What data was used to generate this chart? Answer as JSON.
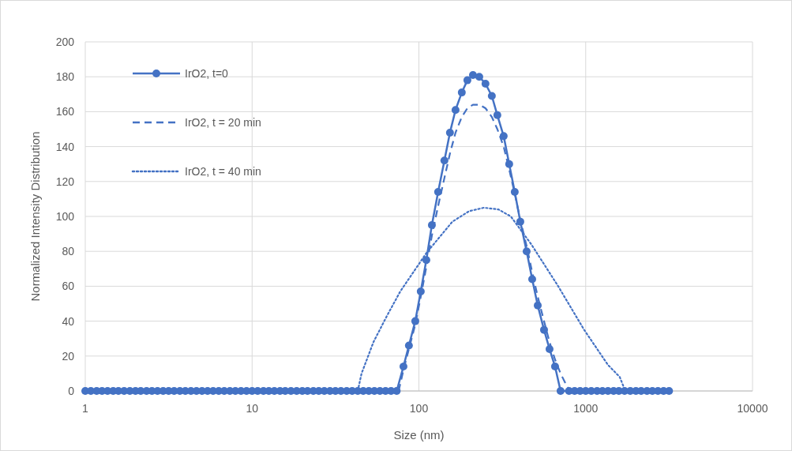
{
  "chart_data": {
    "type": "line",
    "xlabel": "Size (nm)",
    "ylabel": "Normalized Intensity Distribution",
    "log": "x",
    "grid": true,
    "legend": "top left",
    "xlim": [
      1,
      10000
    ],
    "xticks": [
      1,
      10,
      100,
      1000,
      10000
    ],
    "ylim": [
      0,
      200
    ],
    "yticks": [
      0,
      20,
      40,
      60,
      80,
      100,
      120,
      140,
      160,
      180,
      200
    ],
    "series": [
      {
        "name": "IrO2, t=0",
        "color": "#4472c4",
        "marker": "circle",
        "line_style": "solid",
        "x": [
          1,
          1.08,
          1.17,
          1.26,
          1.36,
          1.47,
          1.58,
          1.71,
          1.85,
          2,
          2.15,
          2.33,
          2.51,
          2.71,
          2.93,
          3.16,
          3.41,
          3.69,
          3.98,
          4.3,
          4.64,
          5.01,
          5.41,
          5.84,
          6.31,
          6.81,
          7.36,
          7.94,
          8.58,
          9.26,
          10,
          10.8,
          11.7,
          12.6,
          13.6,
          14.7,
          15.8,
          17.1,
          18.5,
          20,
          21.5,
          23.3,
          25.1,
          27.1,
          29.3,
          31.6,
          34.1,
          36.9,
          39.8,
          43,
          46.4,
          50.1,
          54.1,
          58.4,
          63.1,
          68.1,
          73.6,
          80.8,
          87.1,
          95.1,
          102.6,
          110.8,
          119.6,
          130.4,
          142.2,
          153.5,
          165.8,
          180.8,
          195.3,
          210.9,
          230.1,
          250.7,
          273.7,
          295.3,
          322.2,
          347.8,
          375.5,
          405.4,
          442.5,
          477.8,
          515.7,
          562.6,
          606.9,
          654.9,
          706.8,
          794,
          858,
          926,
          1000,
          1080,
          1170,
          1260,
          1360,
          1470,
          1580,
          1710,
          1850,
          2000,
          2150,
          2330,
          2510,
          2710,
          2930,
          3160
        ],
        "values": [
          0,
          0,
          0,
          0,
          0,
          0,
          0,
          0,
          0,
          0,
          0,
          0,
          0,
          0,
          0,
          0,
          0,
          0,
          0,
          0,
          0,
          0,
          0,
          0,
          0,
          0,
          0,
          0,
          0,
          0,
          0,
          0,
          0,
          0,
          0,
          0,
          0,
          0,
          0,
          0,
          0,
          0,
          0,
          0,
          0,
          0,
          0,
          0,
          0,
          0,
          0,
          0,
          0,
          0,
          0,
          0,
          0,
          14,
          26,
          40,
          57,
          75,
          95,
          114,
          132,
          148,
          161,
          171,
          178,
          181,
          180,
          176,
          169,
          158,
          146,
          130,
          114,
          97,
          80,
          64,
          49,
          35,
          24,
          14,
          0,
          0,
          0,
          0,
          0,
          0,
          0,
          0,
          0,
          0,
          0,
          0,
          0,
          0,
          0,
          0,
          0,
          0,
          0,
          0
        ]
      },
      {
        "name": "IrO2, t = 20 min",
        "color": "#4472c4",
        "marker": "none",
        "line_style": "dashed",
        "x": [
          75.6,
          80.8,
          87.1,
          95.1,
          102.6,
          110.8,
          119.6,
          130.4,
          142.2,
          153.5,
          165.8,
          180.8,
          195.3,
          210.9,
          230.1,
          250.7,
          273.7,
          295.3,
          322.2,
          347.8,
          375.5,
          405.4,
          442.5,
          477.8,
          515.7,
          562.6,
          606.9,
          654.9,
          706.8,
          760,
          805
        ],
        "values": [
          0,
          12,
          24,
          38,
          54,
          71,
          89,
          106,
          122,
          136,
          148,
          157,
          162,
          164,
          164,
          162,
          157,
          150,
          140,
          127,
          113,
          98,
          83,
          68,
          54,
          40,
          28,
          18,
          10,
          4,
          0
        ]
      },
      {
        "name": "IrO2, t = 40 min",
        "color": "#4472c4",
        "marker": "none",
        "line_style": "dotted",
        "x": [
          43,
          45.3,
          53.4,
          64.3,
          77.3,
          110.8,
          158.8,
          200,
          245.5,
          300,
          355.6,
          472,
          684,
          979,
          1358,
          1600,
          1726
        ],
        "values": [
          0,
          10,
          28,
          43,
          57,
          79,
          97,
          103,
          105,
          104,
          100,
          84,
          60,
          35,
          15,
          8,
          0
        ]
      }
    ]
  }
}
